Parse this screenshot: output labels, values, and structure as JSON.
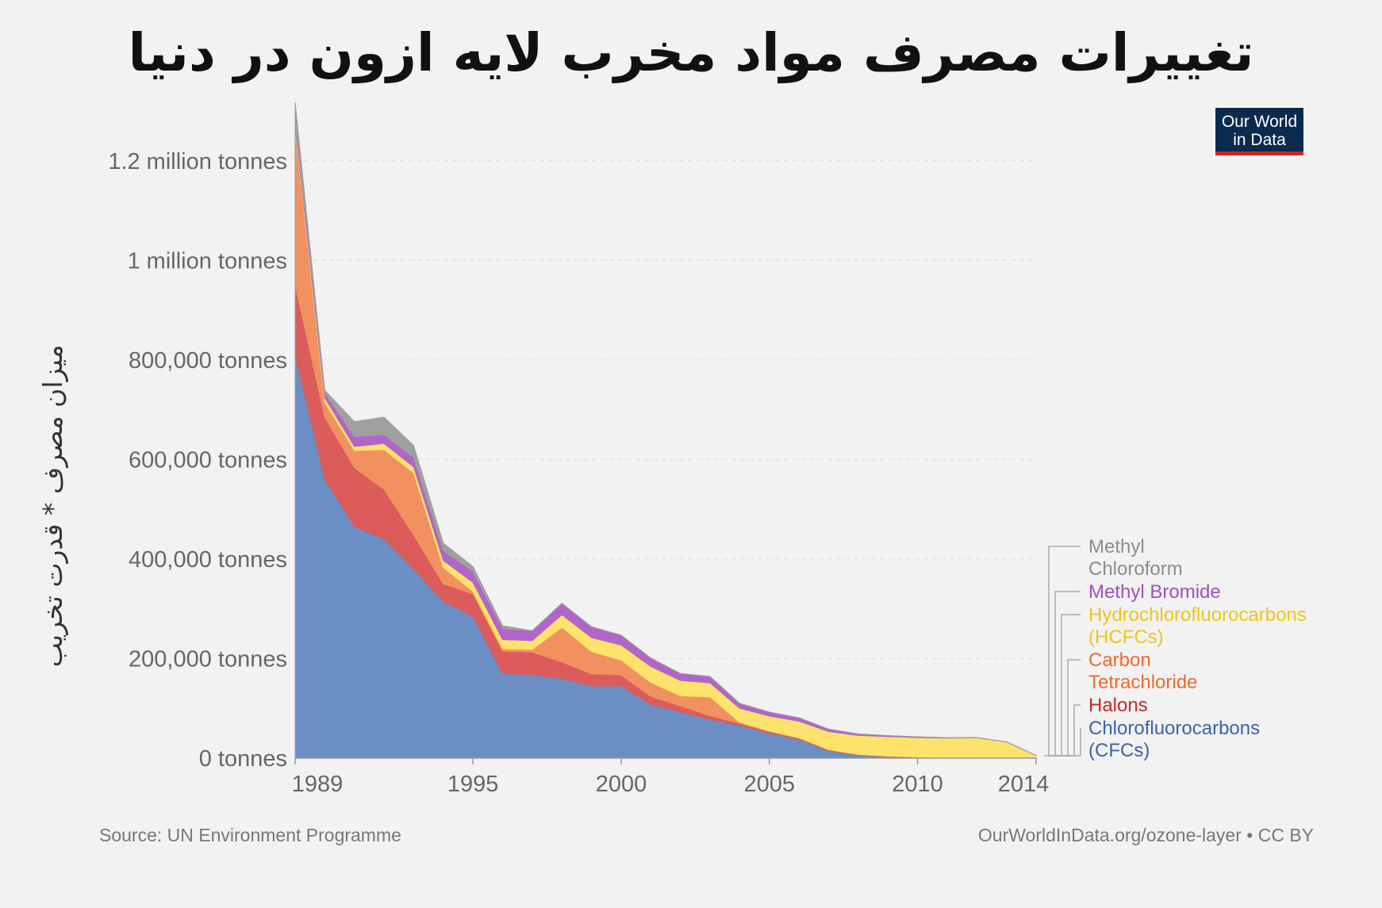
{
  "page": {
    "logo": {
      "line1": "Our World",
      "line2": "in Data"
    },
    "source": "Source: UN Environment Programme",
    "license": "OurWorldInData.org/ozone-layer • CC BY"
  },
  "chart_data": {
    "type": "area",
    "stacked": true,
    "title": "تغییرات مصرف مواد مخرب لایه ازون در دنیا",
    "ylabel": "میزان مصرف * قدرت تخریب",
    "xlabel": "",
    "xlim": [
      1989,
      2014
    ],
    "ylim": [
      0,
      1300000
    ],
    "grid": "horizontal dashed",
    "legend_position": "right, end of series",
    "x": [
      1989,
      1990,
      1991,
      1992,
      1993,
      1994,
      1995,
      1996,
      1997,
      1998,
      1999,
      2000,
      2001,
      2002,
      2003,
      2004,
      2005,
      2006,
      2007,
      2008,
      2009,
      2010,
      2011,
      2012,
      2013,
      2014
    ],
    "x_tick_labels": [
      "1989",
      "1995",
      "2000",
      "2005",
      "2010",
      "2014"
    ],
    "x_ticks": [
      1989,
      1995,
      2000,
      2005,
      2010,
      2014
    ],
    "y_ticks": [
      0,
      200000,
      400000,
      600000,
      800000,
      1000000,
      1200000
    ],
    "y_tick_labels": [
      "0 tonnes",
      "200,000 tonnes",
      "400,000 tonnes",
      "600,000 tonnes",
      "800,000 tonnes",
      "1 million tonnes",
      "1.2 million tonnes"
    ],
    "series": [
      {
        "name": "Chlorofluorocarbons (CFCs)",
        "label_lines": [
          "Chlorofluorocarbons",
          "(CFCs)"
        ],
        "color": "#6b8ec5",
        "label_color": "#3b63a9",
        "values": [
          810000,
          560000,
          465000,
          440000,
          380000,
          315000,
          285000,
          170000,
          168000,
          160000,
          145000,
          145000,
          108000,
          93000,
          78000,
          66000,
          50000,
          38000,
          15000,
          6000,
          3000,
          1500,
          800,
          400,
          200,
          100
        ]
      },
      {
        "name": "Halons",
        "label_lines": [
          "Halons"
        ],
        "color": "#dc5b5b",
        "label_color": "#c52a27",
        "values": [
          140000,
          125000,
          118000,
          100000,
          68000,
          35000,
          45000,
          45000,
          45000,
          33000,
          24000,
          22000,
          16000,
          12000,
          7000,
          4000,
          3000,
          2000,
          1500,
          1000,
          800,
          500,
          300,
          200,
          100,
          50
        ]
      },
      {
        "name": "Carbon Tetrachloride",
        "label_lines": [
          "Carbon",
          "Tetrachloride"
        ],
        "color": "#f0915f",
        "label_color": "#ec6a2e",
        "values": [
          310000,
          30000,
          35000,
          80000,
          125000,
          33000,
          5000,
          5000,
          5000,
          70000,
          45000,
          30000,
          28000,
          20000,
          38000,
          2000,
          1500,
          1000,
          800,
          600,
          400,
          300,
          200,
          150,
          100,
          50
        ]
      },
      {
        "name": "Hydrochlorofluorocarbons (HCFCs)",
        "label_lines": [
          "Hydrochlorofluorocarbons",
          "(HCFCs)"
        ],
        "color": "#fde36b",
        "label_color": "#f0c419",
        "values": [
          8000,
          9000,
          8000,
          12000,
          12000,
          14000,
          18000,
          18000,
          18000,
          25000,
          28000,
          30000,
          32000,
          31000,
          28000,
          28000,
          30000,
          33000,
          36000,
          38000,
          39000,
          39000,
          39000,
          40000,
          32000,
          5000
        ]
      },
      {
        "name": "Methyl Bromide",
        "label_lines": [
          "Methyl Bromide"
        ],
        "color": "#b165c8",
        "label_color": "#a24fbf",
        "values": [
          10000,
          10000,
          20000,
          18000,
          18000,
          20000,
          22000,
          22000,
          20000,
          23000,
          22000,
          20000,
          17000,
          14000,
          13000,
          10000,
          8000,
          7000,
          5000,
          3000,
          2000,
          1500,
          800,
          500,
          300,
          200
        ]
      },
      {
        "name": "Methyl Chloroform",
        "label_lines": [
          "Methyl",
          "Chloroform"
        ],
        "color": "#a0a0a0",
        "label_color": "#8c8c8c",
        "values": [
          40000,
          5000,
          30000,
          35000,
          25000,
          15000,
          10000,
          6000,
          0,
          0,
          0,
          0,
          0,
          0,
          0,
          0,
          0,
          0,
          0,
          0,
          0,
          0,
          0,
          0,
          0,
          0
        ]
      }
    ]
  }
}
